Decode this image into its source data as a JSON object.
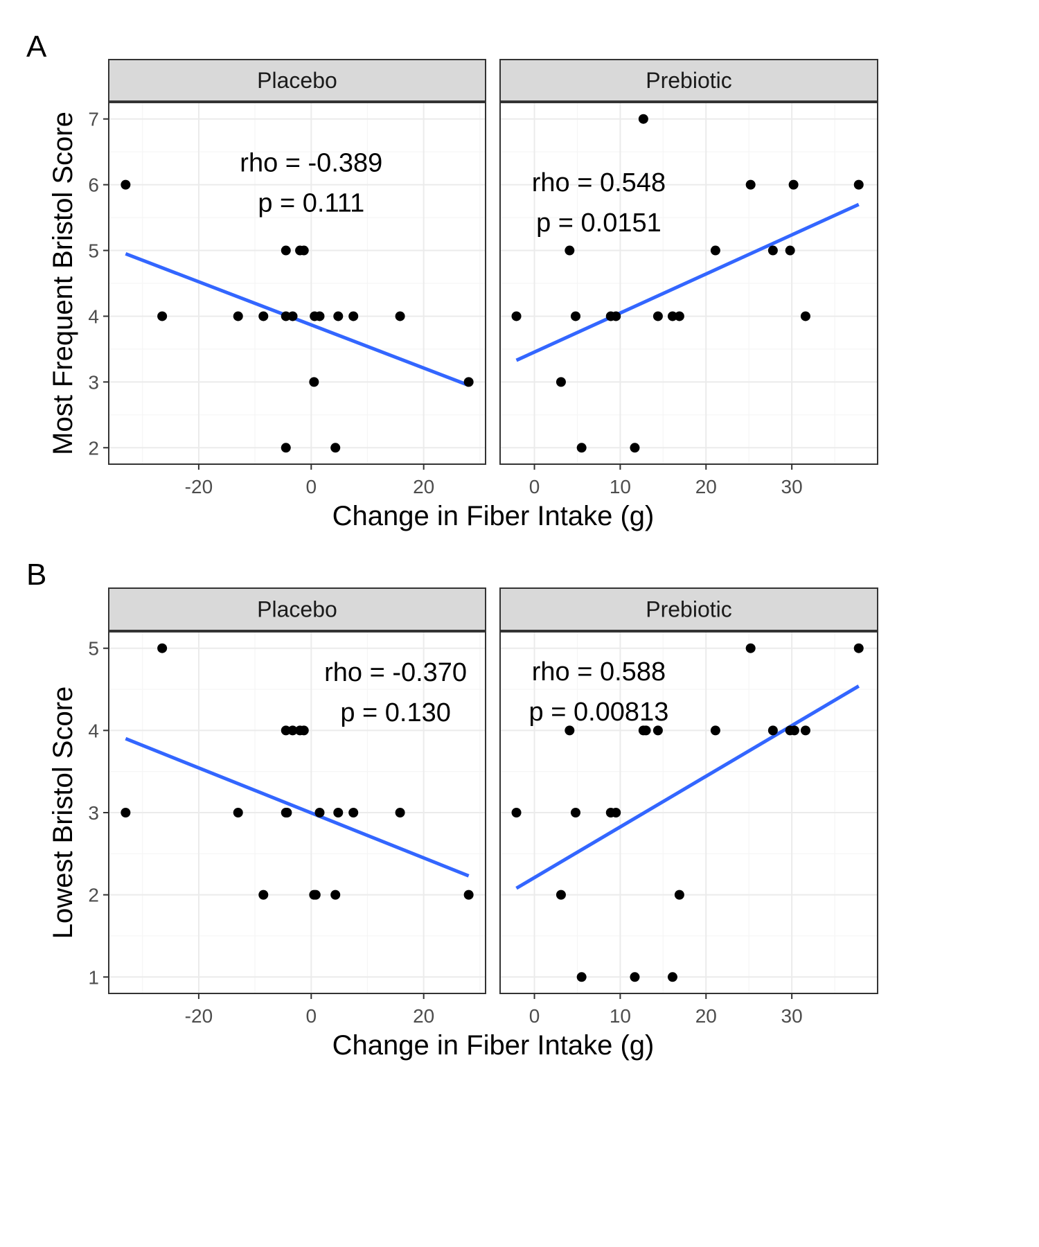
{
  "chart_data": [
    {
      "type": "scatter",
      "panel_label": "A",
      "xlabel": "Change in Fiber Intake (g)",
      "ylabel": "Most Frequent Bristol Score",
      "ylim": [
        1.75,
        7.25
      ],
      "yticks": [
        2,
        3,
        4,
        5,
        6,
        7
      ],
      "grid": true,
      "facets": [
        {
          "strip": "Placebo",
          "xlim": [
            -36,
            31
          ],
          "xticks": [
            -20,
            0,
            20
          ],
          "annotation": [
            "rho = -0.389",
            "p = 0.111"
          ],
          "annotation_pos": [
            0,
            6.2
          ],
          "points": [
            [
              -33,
              6
            ],
            [
              -26.5,
              4
            ],
            [
              -13,
              4
            ],
            [
              -8.5,
              4
            ],
            [
              -4.5,
              5
            ],
            [
              -4.5,
              4
            ],
            [
              -3.3,
              4
            ],
            [
              -2,
              5
            ],
            [
              -1.3,
              5
            ],
            [
              -4.5,
              2
            ],
            [
              0.5,
              3
            ],
            [
              0.6,
              4
            ],
            [
              1.5,
              4
            ],
            [
              4.3,
              2
            ],
            [
              4.8,
              4
            ],
            [
              7.5,
              4
            ],
            [
              15.8,
              4
            ],
            [
              28,
              3
            ]
          ],
          "fit": [
            [
              -33,
              4.95
            ],
            [
              28,
              2.95
            ]
          ]
        },
        {
          "strip": "Prebiotic",
          "xlim": [
            -4,
            40
          ],
          "xticks": [
            0,
            10,
            20,
            30
          ],
          "annotation": [
            "rho = 0.548",
            "p = 0.0151"
          ],
          "annotation_pos": [
            7.5,
            5.9
          ],
          "points": [
            [
              12.7,
              7
            ],
            [
              25.2,
              6
            ],
            [
              30.2,
              6
            ],
            [
              37.8,
              6
            ],
            [
              4.1,
              5
            ],
            [
              21.1,
              5
            ],
            [
              27.8,
              5
            ],
            [
              29.8,
              5
            ],
            [
              -2.1,
              4
            ],
            [
              4.8,
              4
            ],
            [
              8.9,
              4
            ],
            [
              9.5,
              4
            ],
            [
              14.4,
              4
            ],
            [
              16.1,
              4
            ],
            [
              16.9,
              4
            ],
            [
              31.6,
              4
            ],
            [
              3.1,
              3
            ],
            [
              5.5,
              2
            ],
            [
              11.7,
              2
            ]
          ],
          "fit": [
            [
              -2.1,
              3.33
            ],
            [
              37.8,
              5.7
            ]
          ]
        }
      ]
    },
    {
      "type": "scatter",
      "panel_label": "B",
      "xlabel": "Change in Fiber Intake (g)",
      "ylabel": "Lowest Bristol Score",
      "ylim": [
        0.8,
        5.2
      ],
      "yticks": [
        1,
        2,
        3,
        4,
        5
      ],
      "grid": true,
      "facets": [
        {
          "strip": "Placebo",
          "xlim": [
            -36,
            31
          ],
          "xticks": [
            -20,
            0,
            20
          ],
          "annotation": [
            "rho = -0.370",
            "p = 0.130"
          ],
          "annotation_pos": [
            15,
            4.6
          ],
          "points": [
            [
              -26.5,
              5
            ],
            [
              -33,
              3
            ],
            [
              -13,
              3
            ],
            [
              -4.5,
              3
            ],
            [
              -4.3,
              3
            ],
            [
              -4.5,
              4
            ],
            [
              -3.3,
              4
            ],
            [
              -2,
              4
            ],
            [
              -1.3,
              4
            ],
            [
              -8.5,
              2
            ],
            [
              0.5,
              2
            ],
            [
              0.8,
              2
            ],
            [
              1.5,
              3
            ],
            [
              4.3,
              2
            ],
            [
              4.8,
              3
            ],
            [
              7.5,
              3
            ],
            [
              15.8,
              3
            ],
            [
              28,
              2
            ]
          ],
          "fit": [
            [
              -33,
              3.9
            ],
            [
              28,
              2.23
            ]
          ]
        },
        {
          "strip": "Prebiotic",
          "xlim": [
            -4,
            40
          ],
          "xticks": [
            0,
            10,
            20,
            30
          ],
          "annotation": [
            "rho = 0.588",
            "p = 0.00813"
          ],
          "annotation_pos": [
            7.5,
            4.61
          ],
          "points": [
            [
              25.2,
              5
            ],
            [
              37.8,
              5
            ],
            [
              4.1,
              4
            ],
            [
              12.7,
              4
            ],
            [
              13,
              4
            ],
            [
              14.4,
              4
            ],
            [
              21.1,
              4
            ],
            [
              27.8,
              4
            ],
            [
              29.8,
              4
            ],
            [
              30.3,
              4
            ],
            [
              31.6,
              4
            ],
            [
              -2.1,
              3
            ],
            [
              4.8,
              3
            ],
            [
              8.9,
              3
            ],
            [
              9.5,
              3
            ],
            [
              3.1,
              2
            ],
            [
              16.9,
              2
            ],
            [
              5.5,
              1
            ],
            [
              11.7,
              1
            ],
            [
              16.1,
              1
            ]
          ],
          "fit": [
            [
              -2.1,
              2.08
            ],
            [
              37.8,
              4.54
            ]
          ]
        }
      ]
    }
  ],
  "colors": {
    "points": "#000000",
    "fit_line": "#3366ff",
    "strip_fill": "#d9d9d9",
    "grid_major": "#ebebeb",
    "grid_minor": "#f5f5f5",
    "panel_border": "#333333"
  }
}
